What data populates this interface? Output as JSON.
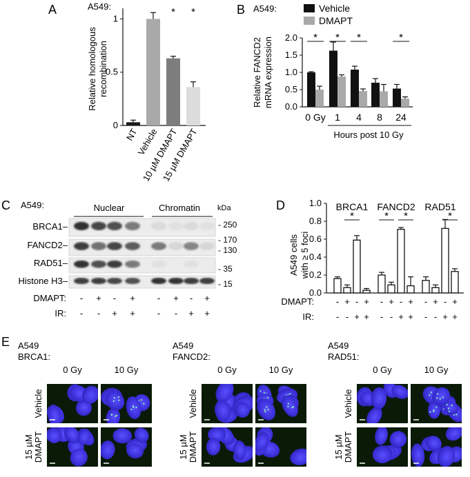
{
  "panels": {
    "A": {
      "letter": "A",
      "cell_line": "A549:",
      "ylabel_line1": "Relative homologous",
      "ylabel_line2": "recombination",
      "yticks": [
        "0",
        "0.5",
        "1"
      ],
      "chart_data": {
        "type": "bar",
        "categories": [
          "NT",
          "Vehicle",
          "10 µM DMAPT",
          "15 µM DMAPT"
        ],
        "values": [
          0.03,
          1.0,
          0.63,
          0.36
        ],
        "errors": [
          0.02,
          0.06,
          0.02,
          0.05
        ],
        "ylim": [
          0,
          1.1
        ],
        "significance": [
          "",
          "",
          "*",
          "*"
        ],
        "colors": [
          "#1a1a1a",
          "#a9a9a9",
          "#7d7d7d",
          "#dcdcdc"
        ]
      }
    },
    "B": {
      "letter": "B",
      "cell_line": "A549:",
      "legend": [
        {
          "label": "Vehicle",
          "color": "#111111"
        },
        {
          "label": "DMAPT",
          "color": "#a9a9a9"
        }
      ],
      "ylabel_line1": "Relative FANCD2",
      "ylabel_line2": "mRNA expression",
      "xlabel": "Hours post 10 Gy",
      "yticks": [
        "0.0",
        "0.5",
        "1.0",
        "1.5",
        "2.0"
      ],
      "chart_data": {
        "type": "bar",
        "categories": [
          "0 Gy",
          "1",
          "4",
          "8",
          "24"
        ],
        "ylim": [
          0,
          2.0
        ],
        "series": [
          {
            "name": "Vehicle",
            "values": [
              1.0,
              1.63,
              1.08,
              0.7,
              0.53
            ],
            "errors": [
              0.02,
              0.25,
              0.1,
              0.12,
              0.12
            ]
          },
          {
            "name": "DMAPT",
            "values": [
              0.5,
              0.88,
              0.46,
              0.45,
              0.24
            ],
            "errors": [
              0.1,
              0.05,
              0.06,
              0.2,
              0.05
            ]
          }
        ],
        "significance": [
          "*",
          "*",
          "*",
          "",
          "*"
        ]
      }
    },
    "C": {
      "letter": "C",
      "cell_line": "A549:",
      "fraction_labels": [
        "Nuclear",
        "Chromatin"
      ],
      "kda_label": "kDa",
      "proteins": [
        "BRCA1–",
        "FANCD2–",
        "RAD51–",
        "Histone H3–"
      ],
      "markers": [
        "- 250",
        "- 170",
        "- 130",
        "- 35",
        "- 15"
      ],
      "dmapt_label": "DMAPT:",
      "ir_label": "IR:",
      "dmapt_signs": [
        "-",
        "+",
        "-",
        "+",
        "-",
        "+",
        "-",
        "+"
      ],
      "ir_signs": [
        "-",
        "-",
        "+",
        "+",
        "-",
        "-",
        "+",
        "+"
      ]
    },
    "D": {
      "letter": "D",
      "ylabel_line1": "A549 cells",
      "ylabel_line2": "with ≥ 5 foci",
      "yticks": [
        "0.0",
        "0.2",
        "0.4",
        "0.6",
        "0.8",
        "1.0"
      ],
      "dmapt_label": "DMAPT:",
      "ir_label": "IR:",
      "dmapt_signs": [
        "-",
        "+",
        "-",
        "+"
      ],
      "ir_signs": [
        "-",
        "-",
        "+",
        "+"
      ],
      "chart_data": {
        "type": "bar",
        "ylim": [
          0,
          1.0
        ],
        "groups": [
          {
            "name": "BRCA1",
            "values": [
              0.16,
              0.06,
              0.59,
              0.03
            ],
            "errors": [
              0.02,
              0.03,
              0.05,
              0.02
            ]
          },
          {
            "name": "FANCD2",
            "values": [
              0.2,
              0.09,
              0.71,
              0.08
            ],
            "errors": [
              0.03,
              0.03,
              0.02,
              0.1
            ]
          },
          {
            "name": "RAD51",
            "values": [
              0.14,
              0.06,
              0.72,
              0.24
            ],
            "errors": [
              0.04,
              0.03,
              0.1,
              0.03
            ]
          }
        ]
      }
    },
    "E": {
      "letter": "E",
      "blocks": [
        {
          "line1": "A549",
          "line2": "BRCA1:"
        },
        {
          "line1": "A549",
          "line2": "FANCD2:"
        },
        {
          "line1": "A549",
          "line2": "RAD51:"
        }
      ],
      "col_labels": [
        "0 Gy",
        "10 Gy"
      ],
      "row_label_vehicle": "Vehicle",
      "row_label_dmapt_line1": "15 µM",
      "row_label_dmapt_line2": "DMAPT"
    }
  }
}
